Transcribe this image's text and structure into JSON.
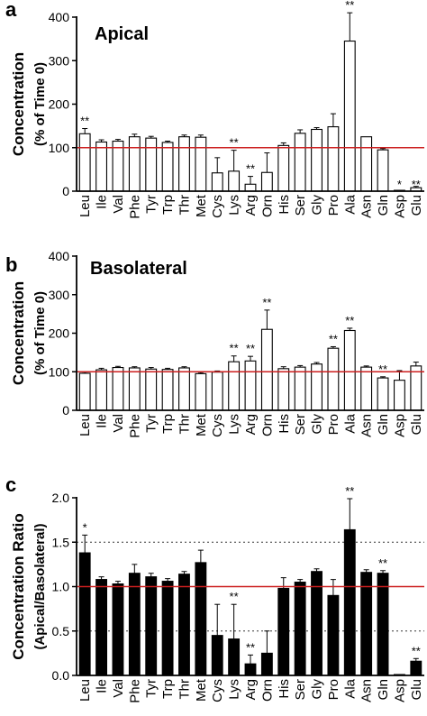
{
  "categories": [
    "Leu",
    "Ile",
    "Val",
    "Phe",
    "Tyr",
    "Trp",
    "Thr",
    "Met",
    "Cys",
    "Lys",
    "Arg",
    "Orn",
    "His",
    "Ser",
    "Gly",
    "Pro",
    "Ala",
    "Asn",
    "Gln",
    "Asp",
    "Glu"
  ],
  "chart_data": [
    {
      "type": "bar",
      "panel_letter": "a",
      "title": "Apical",
      "ylabel": "Concentration",
      "ylabel2": "(% of Time 0)",
      "ylim": [
        0,
        400
      ],
      "yticks": [
        0,
        100,
        200,
        300,
        400
      ],
      "reference_line": 100,
      "bar_fill": "white",
      "values": [
        132,
        113,
        115,
        125,
        122,
        112,
        125,
        124,
        42,
        46,
        16,
        43,
        105,
        133,
        142,
        148,
        345,
        125,
        95,
        2,
        8
      ],
      "errors": [
        12,
        5,
        4,
        6,
        4,
        3,
        4,
        5,
        35,
        48,
        18,
        45,
        6,
        8,
        4,
        30,
        65,
        0,
        3,
        0,
        3
      ],
      "significance": [
        "**",
        "",
        "",
        "",
        "",
        "",
        "",
        "",
        "",
        "**",
        "**",
        "",
        "",
        "",
        "",
        "",
        "**",
        "",
        "",
        "*",
        "**"
      ],
      "sig_at_base": [
        false,
        false,
        false,
        false,
        false,
        false,
        false,
        false,
        false,
        false,
        false,
        false,
        false,
        false,
        false,
        false,
        false,
        false,
        false,
        true,
        true
      ]
    },
    {
      "type": "bar",
      "panel_letter": "b",
      "title": "Basolateral",
      "ylabel": "Concentration",
      "ylabel2": "(% of Time 0)",
      "ylim": [
        0,
        400
      ],
      "yticks": [
        0,
        100,
        200,
        300,
        400
      ],
      "reference_line": 100,
      "bar_fill": "white",
      "values": [
        96,
        105,
        111,
        110,
        107,
        106,
        110,
        95,
        99,
        126,
        128,
        210,
        108,
        112,
        120,
        161,
        207,
        112,
        84,
        78,
        115
      ],
      "errors": [
        3,
        4,
        3,
        3,
        4,
        3,
        3,
        3,
        3,
        15,
        12,
        50,
        5,
        4,
        4,
        4,
        6,
        3,
        3,
        25,
        10
      ],
      "significance": [
        "",
        "",
        "",
        "",
        "",
        "",
        "",
        "",
        "",
        "**",
        "**",
        "**",
        "",
        "",
        "",
        "**",
        "**",
        "",
        "**",
        "",
        ""
      ],
      "sig_at_base": [
        false,
        false,
        false,
        false,
        false,
        false,
        false,
        false,
        false,
        false,
        false,
        false,
        false,
        false,
        false,
        false,
        false,
        false,
        false,
        false,
        false
      ]
    },
    {
      "type": "bar",
      "panel_letter": "c",
      "title": "",
      "ylabel": "Concentration Ratio",
      "ylabel2": "(Apical/Basolateral)",
      "ylim": [
        0,
        2.0
      ],
      "yticks": [
        "0.0",
        "0.5",
        "1.0",
        "1.5",
        "2.0"
      ],
      "reference_line": 1.0,
      "dotted_lines": [
        0.5,
        1.5
      ],
      "bar_fill": "black",
      "values": [
        1.38,
        1.08,
        1.03,
        1.15,
        1.11,
        1.06,
        1.14,
        1.27,
        0.45,
        0.41,
        0.13,
        0.25,
        0.98,
        1.05,
        1.17,
        0.9,
        1.64,
        1.16,
        1.15,
        0.01,
        0.16
      ],
      "errors": [
        0.2,
        0.03,
        0.03,
        0.1,
        0.04,
        0.03,
        0.03,
        0.14,
        0.35,
        0.39,
        0.1,
        0.25,
        0.12,
        0.03,
        0.03,
        0.18,
        0.35,
        0.03,
        0.03,
        0.0,
        0.03
      ],
      "significance": [
        "*",
        "",
        "",
        "",
        "",
        "",
        "",
        "",
        "",
        "**",
        "**",
        "",
        "",
        "",
        "",
        "",
        "**",
        "",
        "**",
        "",
        "**"
      ],
      "sig_at_base": [
        false,
        false,
        false,
        false,
        false,
        false,
        false,
        false,
        false,
        false,
        false,
        false,
        false,
        false,
        false,
        false,
        false,
        false,
        false,
        false,
        false
      ]
    }
  ],
  "colors": {
    "bar_outline": "#000000",
    "reference_line": "#cc1f1f",
    "dotted_line": "#333333"
  }
}
